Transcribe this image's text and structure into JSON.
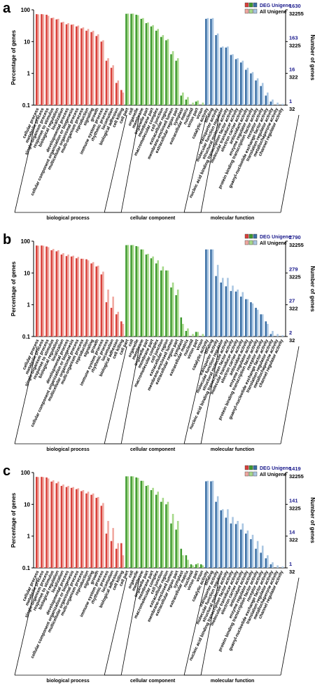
{
  "categories": [
    "cellular process",
    "metabolic process",
    "single-organism process",
    "response to stimulus",
    "biological regulation",
    "localization",
    "developmental process",
    "cellular component organization or biogenesis",
    "multicellular organismal process",
    "multi-organism process",
    "reproduction",
    "signaling",
    "growth",
    "immune system process",
    "rhythmic process",
    "locomotion",
    "biological adhesion",
    "cell killing",
    "cell part",
    "cell",
    "organelle",
    "membrane",
    "organelle part",
    "membrane part",
    "macromolecular complex",
    "cell junction",
    "extracellular region",
    "membrane-enclosed lumen",
    "extracellular region part",
    "symplast",
    "extracellular matrix",
    "nucleoid",
    "virion part",
    "virion",
    "catalytic activity",
    "binding",
    "transporter activity",
    "molecular function regulator",
    "structural molecule activity",
    "nucleic acid binding transcription factor activity",
    "molecular transducer activity",
    "electron carrier activity",
    "antioxidant activity",
    "enzyme regulator activity",
    "protein binding transcription factor activity",
    "receptor activity",
    "guanyl-nucleotide exchange factor activity",
    "translation regulator activity",
    "metallochaperone activity",
    "channel regulator activity"
  ],
  "groups": [
    {
      "label": "biological process",
      "start": 0,
      "end": 17
    },
    {
      "label": "cellular component",
      "start": 18,
      "end": 33
    },
    {
      "label": "molecular function",
      "start": 34,
      "end": 49
    }
  ],
  "colors": {
    "bp_deg": "#d9403a",
    "bp_all": "#f0a8a0",
    "cc_deg": "#3f9a2f",
    "cc_all": "#a6d98a",
    "mf_deg": "#3b6fa5",
    "mf_all": "#a9c6e2",
    "axis": "#000000",
    "right_top": "#1a1a8c"
  },
  "chart_data": [
    {
      "type": "bar",
      "panel_label": "a",
      "ylabel": "Percentage of genes",
      "ylabel_right": "Number of genes",
      "yscale": "log",
      "ylim": [
        0.1,
        100
      ],
      "yticks": [
        "100",
        "10",
        "1",
        "0.1"
      ],
      "legend": [
        "DEG Unigene",
        "All Unigene"
      ],
      "legend_position": "top-right",
      "right_ticks": [
        {
          "deg": "1630",
          "all": "32255"
        },
        {
          "deg": "163",
          "all": "3225"
        },
        {
          "deg": "16",
          "all": "322"
        },
        {
          "deg": "1",
          "all": "32"
        }
      ],
      "series": [
        {
          "name": "DEG Unigene",
          "values": [
            73,
            73,
            70,
            55,
            50,
            40,
            35,
            34,
            30,
            26,
            22,
            20,
            15,
            10,
            2.5,
            1.5,
            0.5,
            0.3,
            75,
            75,
            70,
            52,
            38,
            30,
            22,
            14,
            11,
            4,
            2.5,
            0.2,
            0.15,
            0.1,
            0.13,
            0.1,
            52,
            52,
            16,
            6.5,
            6.5,
            3.8,
            2.8,
            2.2,
            1.3,
            1,
            0.6,
            0.4,
            0.2,
            0.13,
            0.1,
            0.1
          ]
        },
        {
          "name": "All Unigene",
          "values": [
            72,
            72,
            65,
            57,
            52,
            42,
            38,
            35,
            32,
            28,
            25,
            22,
            17,
            11,
            3,
            1.8,
            0.6,
            0.25,
            76,
            76,
            68,
            55,
            40,
            33,
            25,
            16,
            12,
            5,
            3,
            0.25,
            0.18,
            0.12,
            0.14,
            0.12,
            55,
            55,
            18,
            7,
            7,
            4,
            3,
            2.5,
            1.5,
            1.1,
            0.7,
            0.5,
            0.25,
            0.15,
            0.12,
            0.11
          ]
        }
      ]
    },
    {
      "type": "bar",
      "panel_label": "b",
      "ylabel": "Percentage of genes",
      "ylabel_right": "Number of genes",
      "yscale": "log",
      "ylim": [
        0.1,
        100
      ],
      "yticks": [
        "100",
        "10",
        "1",
        "0.1"
      ],
      "legend": [
        "DEG Unigene",
        "All Unigene"
      ],
      "legend_position": "top-right",
      "right_ticks": [
        {
          "deg": "2790",
          "all": "32255"
        },
        {
          "deg": "279",
          "all": "3225"
        },
        {
          "deg": "27",
          "all": "322"
        },
        {
          "deg": "2",
          "all": "32"
        }
      ],
      "series": [
        {
          "name": "DEG Unigene",
          "values": [
            73,
            73,
            68,
            52,
            48,
            38,
            34,
            33,
            29,
            28,
            27,
            20,
            16,
            9,
            1.2,
            0.8,
            0.5,
            0.3,
            75,
            75,
            70,
            55,
            38,
            29,
            20,
            12,
            12,
            3.5,
            2,
            0.4,
            0.15,
            0.1,
            0.14,
            0.1,
            55,
            55,
            8,
            5,
            3.8,
            2.7,
            2.6,
            1.8,
            1.5,
            1.2,
            0.8,
            0.5,
            0.3,
            0.12,
            0.1,
            0.1
          ]
        },
        {
          "name": "All Unigene",
          "values": [
            72,
            72,
            65,
            57,
            52,
            42,
            38,
            35,
            32,
            28,
            25,
            22,
            17,
            11,
            3,
            1.8,
            0.6,
            0.25,
            76,
            76,
            68,
            55,
            40,
            33,
            25,
            16,
            12,
            5,
            3,
            0.25,
            0.18,
            0.12,
            0.14,
            0.12,
            55,
            55,
            18,
            7,
            7,
            4,
            3,
            2.5,
            1.5,
            1.1,
            0.7,
            0.5,
            0.25,
            0.15,
            0.12,
            0.11
          ]
        }
      ]
    },
    {
      "type": "bar",
      "panel_label": "c",
      "ylabel": "Percentage of genes",
      "ylabel_right": "Number of genes",
      "yscale": "log",
      "ylim": [
        0.1,
        100
      ],
      "yticks": [
        "100",
        "10",
        "1",
        "0.1"
      ],
      "legend": [
        "DEG Unigene",
        "All Unigene"
      ],
      "legend_position": "top-right",
      "right_ticks": [
        {
          "deg": "1419",
          "all": "32255"
        },
        {
          "deg": "141",
          "all": "3225"
        },
        {
          "deg": "14",
          "all": "322"
        },
        {
          "deg": "1",
          "all": "32"
        }
      ],
      "series": [
        {
          "name": "DEG Unigene",
          "values": [
            73,
            73,
            70,
            52,
            46,
            38,
            35,
            33,
            30,
            26,
            22,
            20,
            16,
            9,
            1.2,
            0.7,
            0.4,
            0.6,
            76,
            76,
            70,
            55,
            38,
            28,
            20,
            12,
            10,
            2.5,
            1.6,
            0.4,
            0.25,
            0.13,
            0.13,
            0.13,
            53,
            53,
            12,
            6.5,
            3.8,
            2.5,
            2.4,
            1.6,
            1.2,
            0.8,
            0.4,
            0.3,
            0.2,
            0.13,
            0.1,
            0.1
          ]
        },
        {
          "name": "All Unigene",
          "values": [
            72,
            72,
            65,
            57,
            52,
            42,
            38,
            35,
            32,
            28,
            25,
            22,
            17,
            11,
            3,
            1.8,
            0.6,
            0.25,
            76,
            76,
            68,
            55,
            40,
            33,
            25,
            16,
            12,
            5,
            3,
            0.25,
            0.18,
            0.12,
            0.14,
            0.12,
            55,
            55,
            18,
            7,
            7,
            4,
            3,
            2.5,
            1.5,
            1.1,
            0.7,
            0.5,
            0.25,
            0.15,
            0.12,
            0.11
          ]
        }
      ]
    }
  ]
}
